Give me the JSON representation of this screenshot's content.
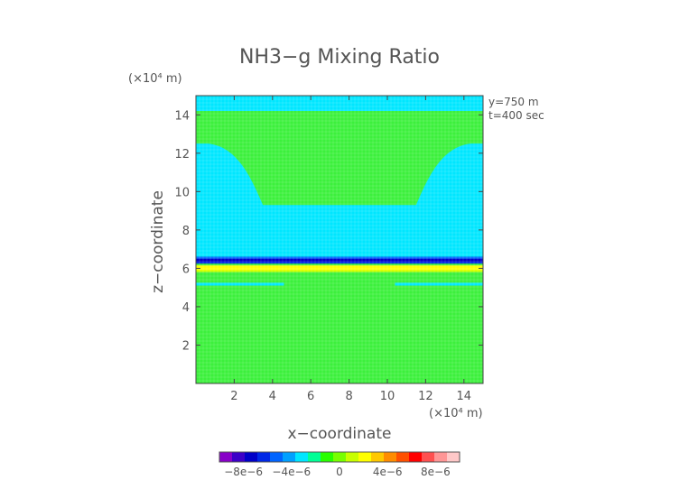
{
  "chart_data": {
    "type": "heatmap",
    "title": "NH3−g Mixing Ratio",
    "xlabel": "x−coordinate",
    "ylabel": "z−coordinate",
    "x_unit": "(×10⁴ m)",
    "y_unit": "(×10⁴ m)",
    "xlim": [
      0,
      15
    ],
    "ylim": [
      0,
      15
    ],
    "x_ticks": [
      2,
      4,
      6,
      8,
      10,
      12,
      14
    ],
    "y_ticks": [
      2,
      4,
      6,
      8,
      10,
      12,
      14
    ],
    "x_tick_labels": [
      "2",
      "4",
      "6",
      "8",
      "10",
      "12",
      "14"
    ],
    "y_tick_labels": [
      "2",
      "4",
      "6",
      "8",
      "10",
      "12",
      "14"
    ],
    "annotations": [
      "y=750 m",
      "t=400 sec"
    ],
    "colorbar": {
      "range": [
        -1e-05,
        1e-05
      ],
      "ticks": [
        -8e-06,
        -4e-06,
        0,
        4e-06,
        8e-06
      ],
      "tick_labels": [
        "−8e−6",
        "−4e−6",
        "0",
        "4e−6",
        "8e−6"
      ],
      "colors": [
        "#8800c8",
        "#3c00c8",
        "#0000c8",
        "#0028e6",
        "#0064ff",
        "#00a0ff",
        "#00e6ff",
        "#00ff96",
        "#28ff00",
        "#78ff00",
        "#c8ff00",
        "#ffff00",
        "#ffc800",
        "#ff8c00",
        "#ff5000",
        "#ff0000",
        "#ff5050",
        "#ff9696",
        "#ffc8c8"
      ]
    },
    "fields": [
      {
        "region": "background",
        "value": 0,
        "color": "#3cf03c"
      },
      {
        "region": "top layer",
        "z_range": [
          14.2,
          15
        ],
        "value": -1e-06,
        "color": "#00e6ff"
      },
      {
        "region": "mid layer",
        "z_range": [
          6.6,
          9.3
        ],
        "value": -1e-06,
        "color": "#00e6ff"
      },
      {
        "region": "strong negative band",
        "z_range": [
          6.25,
          6.6
        ],
        "value": -6e-06,
        "color": "#0000c8"
      },
      {
        "region": "positive band",
        "z_range": [
          5.9,
          6.15
        ],
        "value": 3e-06,
        "color": "#ffff00"
      },
      {
        "region": "left plume",
        "x_range": [
          0,
          3.5
        ],
        "z_range": [
          9.3,
          12.5
        ],
        "value": -1e-06,
        "color": "#00e6ff"
      },
      {
        "region": "right plume",
        "x_range": [
          11.5,
          15
        ],
        "z_range": [
          9.3,
          12.5
        ],
        "value": -1e-06,
        "color": "#00e6ff"
      },
      {
        "region": "left thin strip",
        "x_range": [
          0,
          4.6
        ],
        "z_range": [
          5.1,
          5.25
        ],
        "value": -1e-06,
        "color": "#00e6ff"
      },
      {
        "region": "right thin strip",
        "x_range": [
          10.4,
          15
        ],
        "z_range": [
          5.1,
          5.25
        ],
        "value": -1e-06,
        "color": "#00e6ff"
      }
    ]
  }
}
